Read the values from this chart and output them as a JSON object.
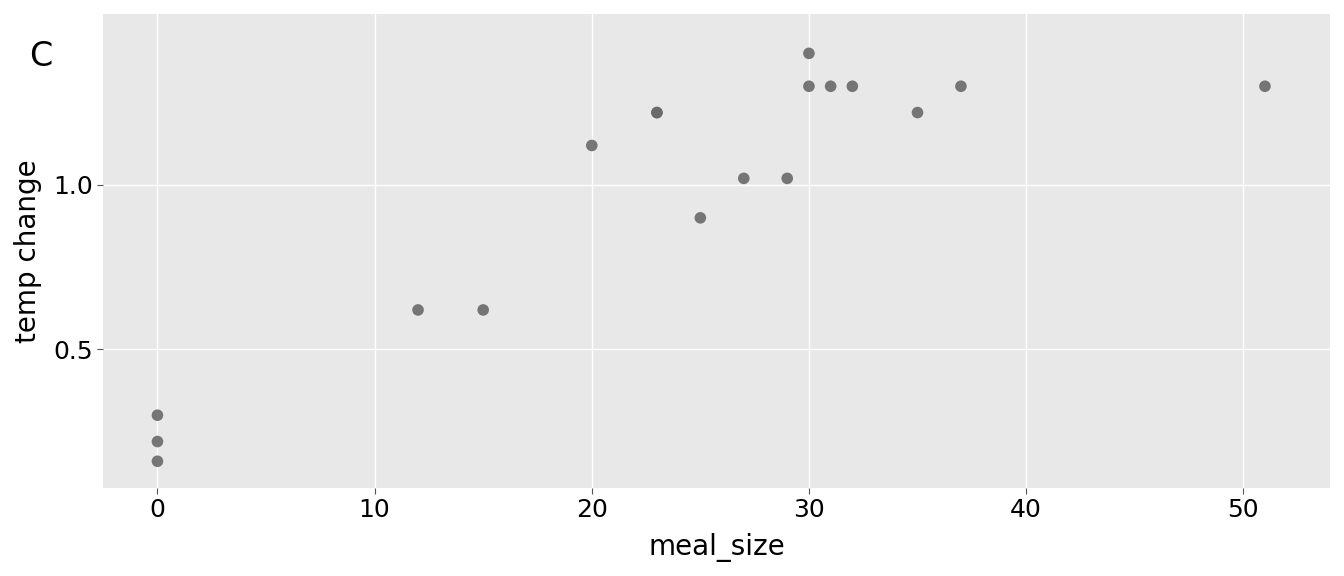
{
  "x": [
    0,
    0,
    0,
    12,
    15,
    20,
    23,
    23,
    25,
    27,
    29,
    30,
    30,
    31,
    32,
    35,
    37,
    51
  ],
  "y": [
    0.3,
    0.22,
    0.16,
    0.62,
    0.62,
    1.12,
    1.22,
    1.22,
    0.9,
    1.02,
    1.02,
    1.4,
    1.3,
    1.3,
    1.3,
    1.22,
    1.3,
    1.3
  ],
  "xlabel": "meal_size",
  "ylabel": "temp change",
  "panel_label": "C",
  "dot_color": "#696969",
  "fig_bg_color": "#ffffff",
  "plot_bg_color": "#e8e8e8",
  "grid_color": "#ffffff",
  "xlim": [
    -2.5,
    54
  ],
  "ylim": [
    0.08,
    1.52
  ],
  "xticks": [
    0,
    10,
    20,
    30,
    40,
    50
  ],
  "yticks": [
    0.5,
    1.0
  ],
  "label_fontsize": 20,
  "tick_fontsize": 18,
  "panel_label_fontsize": 24,
  "dot_size": 70,
  "dot_alpha": 0.9
}
